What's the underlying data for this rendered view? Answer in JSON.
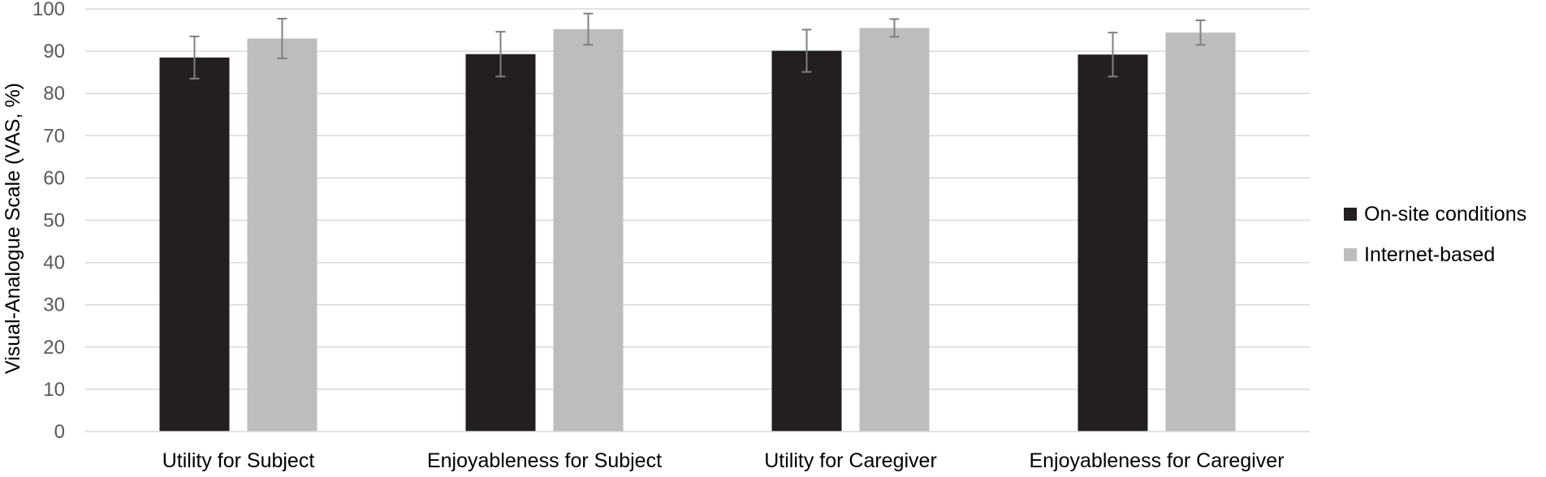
{
  "chart_data": {
    "type": "bar",
    "title": "",
    "xlabel": "",
    "ylabel": "Visual-Analogue Scale (VAS, %)",
    "ylim": [
      0,
      100
    ],
    "yticks": [
      0,
      10,
      20,
      30,
      40,
      50,
      60,
      70,
      80,
      90,
      100
    ],
    "grid": true,
    "legend_position": "right",
    "categories": [
      "Utility for Subject",
      "Enjoyableness for Subject",
      "Utility for Caregiver",
      "Enjoyableness for Caregiver"
    ],
    "series": [
      {
        "name": "On-site conditions",
        "color": "#231f20",
        "values": [
          88.5,
          89.3,
          90.1,
          89.2
        ],
        "error": [
          5.0,
          5.3,
          5.0,
          5.2
        ]
      },
      {
        "name": "Internet-based",
        "color": "#bcbdbf",
        "values": [
          93.0,
          95.2,
          95.5,
          94.4
        ],
        "error": [
          4.7,
          3.7,
          2.1,
          2.9
        ]
      }
    ],
    "colors": {
      "grid": "#d9d9d9",
      "axis": "#d9d9d9",
      "errorbar": "#7f7f7f"
    }
  }
}
